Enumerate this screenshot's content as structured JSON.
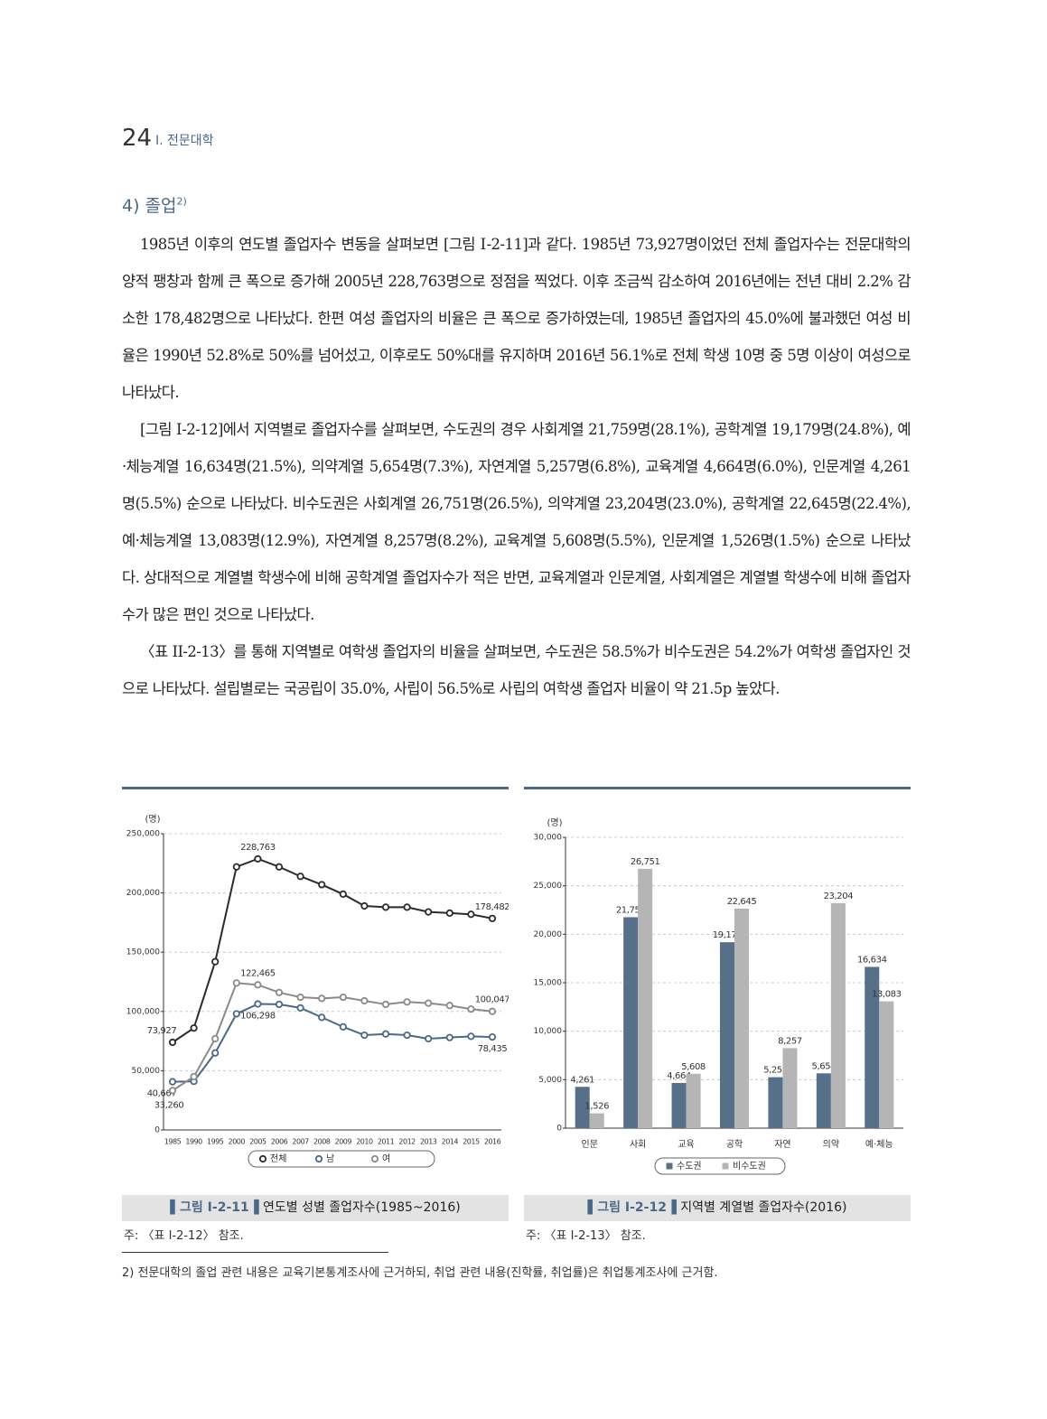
{
  "header": {
    "page_number": "24",
    "section": "Ⅰ. 전문대학"
  },
  "section_heading": {
    "text": "4) 졸업",
    "footnote_ref": "2)"
  },
  "paragraphs": [
    "1985년 이후의 연도별 졸업자수 변동을 살펴보면 [그림 Ⅰ-2-11]과 같다. 1985년 73,927명이었던 전체 졸업자수는 전문대학의 양적 팽창과 함께 큰 폭으로 증가해 2005년 228,763명으로 정점을 찍었다. 이후 조금씩 감소하여 2016년에는 전년 대비 2.2% 감소한 178,482명으로 나타났다. 한편 여성 졸업자의 비율은 큰 폭으로 증가하였는데, 1985년 졸업자의 45.0%에 불과했던 여성 비율은 1990년 52.8%로 50%를 넘어섰고, 이후로도 50%대를 유지하며 2016년 56.1%로 전체 학생 10명 중 5명 이상이 여성으로 나타났다.",
    "[그림 Ⅰ-2-12]에서 지역별로 졸업자수를 살펴보면, 수도권의 경우 사회계열 21,759명(28.1%), 공학계열 19,179명(24.8%), 예·체능계열 16,634명(21.5%), 의약계열 5,654명(7.3%), 자연계열 5,257명(6.8%), 교육계열 4,664명(6.0%), 인문계열 4,261명(5.5%) 순으로 나타났다. 비수도권은 사회계열 26,751명(26.5%), 의약계열 23,204명(23.0%), 공학계열 22,645명(22.4%), 예·체능계열 13,083명(12.9%), 자연계열 8,257명(8.2%), 교육계열 5,608명(5.5%), 인문계열 1,526명(1.5%) 순으로 나타났다. 상대적으로 계열별 학생수에 비해 공학계열 졸업자수가 적은 반면, 교육계열과 인문계열, 사회계열은 계열별 학생수에 비해 졸업자수가 많은 편인 것으로 나타났다.",
    "〈표 II-2-13〉를 통해 지역별로 여학생 졸업자의 비율을 살펴보면, 수도권은 58.5%가 비수도권은 54.2%가 여학생 졸업자인 것으로 나타났다. 설립별로는 국공립이 35.0%, 사립이 56.5%로 사립의 여학생 졸업자 비율이 약 21.5p 높았다."
  ],
  "chart_data": [
    {
      "type": "line",
      "figure_label": "그림 Ⅰ-2-11",
      "title": "연도별 성별 졸업자수(1985~2016)",
      "note": "주: 〈표 Ⅰ-2-12〉 참조.",
      "ylabel": "(명)",
      "categories": [
        "1985",
        "1990",
        "1995",
        "2000",
        "2005",
        "2006",
        "2007",
        "2008",
        "2009",
        "2010",
        "2011",
        "2012",
        "2013",
        "2014",
        "2015",
        "2016"
      ],
      "ylim": [
        0,
        250000
      ],
      "yticks": [
        0,
        {
          "value": 50000,
          "label": "50,000"
        },
        {
          "value": 100000,
          "label": "100,000"
        },
        {
          "value": 150000,
          "label": "150,000"
        },
        {
          "value": 200000,
          "label": "200,000"
        },
        {
          "value": 250000,
          "label": "250,000"
        }
      ],
      "grid": true,
      "series": [
        {
          "name": "전체",
          "color": "#2b2b2b",
          "values": [
            73927,
            86000,
            142000,
            222000,
            228763,
            222000,
            214000,
            207000,
            199000,
            189000,
            188000,
            188000,
            184000,
            183000,
            182000,
            178482
          ],
          "value_labels": [
            "73,927",
            null,
            null,
            null,
            "228,763",
            null,
            null,
            null,
            null,
            null,
            null,
            null,
            null,
            null,
            null,
            "178,482"
          ]
        },
        {
          "name": "남",
          "color": "#4a6987",
          "values": [
            40667,
            41000,
            65000,
            98000,
            106298,
            106000,
            103000,
            95000,
            87000,
            80000,
            81000,
            80000,
            77000,
            78000,
            79000,
            78435
          ],
          "value_labels": [
            "40,667",
            null,
            null,
            null,
            "106,298",
            null,
            null,
            null,
            null,
            null,
            null,
            null,
            null,
            null,
            null,
            "78,435"
          ]
        },
        {
          "name": "여",
          "color": "#8a8a8a",
          "values": [
            33260,
            45000,
            77000,
            124000,
            122465,
            116000,
            112000,
            111000,
            112000,
            109000,
            106000,
            108000,
            107000,
            105000,
            102000,
            100047
          ],
          "value_labels": [
            "33,260",
            null,
            null,
            null,
            "122,465",
            null,
            null,
            null,
            null,
            null,
            null,
            null,
            null,
            null,
            null,
            "100,047"
          ]
        }
      ]
    },
    {
      "type": "bar",
      "figure_label": "그림 Ⅰ-2-12",
      "title": "지역별 계열별 졸업자수(2016)",
      "note": "주: 〈표 Ⅰ-2-13〉 참조.",
      "ylabel": "(명)",
      "categories": [
        "인문",
        "사회",
        "교육",
        "공학",
        "자연",
        "의약",
        "예·체능"
      ],
      "ylim": [
        0,
        30000
      ],
      "yticks": [
        0,
        {
          "value": 5000,
          "label": "5,000"
        },
        {
          "value": 10000,
          "label": "10,000"
        },
        {
          "value": 15000,
          "label": "15,000"
        },
        {
          "value": 20000,
          "label": "20,000"
        },
        {
          "value": 25000,
          "label": "25,000"
        },
        {
          "value": 30000,
          "label": "30,000"
        }
      ],
      "grid": true,
      "series": [
        {
          "name": "수도권",
          "color": "#56708a",
          "values": [
            4261,
            21759,
            4664,
            19179,
            5257,
            5654,
            16634
          ],
          "value_labels": [
            "4,261",
            "21,759",
            "4,664",
            "19,179",
            "5,257",
            "5,654",
            "16,634"
          ]
        },
        {
          "name": "비수도권",
          "color": "#b5b5b5",
          "values": [
            1526,
            26751,
            5608,
            22645,
            8257,
            23204,
            13083
          ],
          "value_labels": [
            "1,526",
            "26,751",
            "5,608",
            "22,645",
            "8,257",
            "23,204",
            "13,083"
          ]
        }
      ]
    }
  ],
  "footnote": "2) 전문대학의 졸업 관련 내용은 교육기본통계조사에 근거하되, 취업 관련 내용(진학률, 취업률)은 취업통계조사에 근거함."
}
